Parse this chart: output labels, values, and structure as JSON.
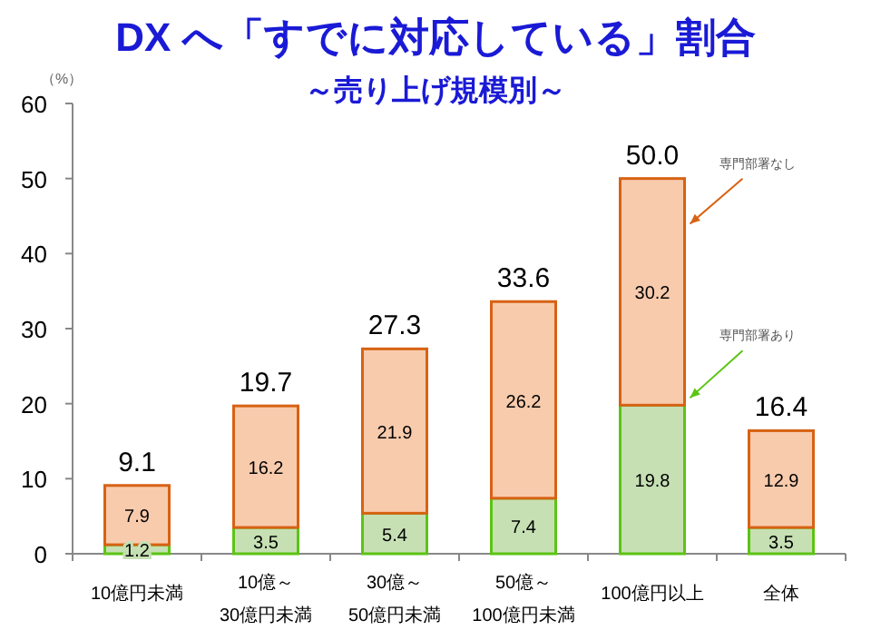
{
  "chart_data": {
    "type": "bar",
    "title": "DX へ「すでに対応している」割合",
    "subtitle": "～売り上げ規模別～",
    "ylabel": "（%）",
    "categories": [
      "10億円未満",
      "10億～\n30億円未満",
      "30億～\n50億円未満",
      "50億～\n100億円未満",
      "100億円以上",
      "全体"
    ],
    "stacked": true,
    "series": [
      {
        "name": "専門部署あり",
        "color": "#c6e0b4",
        "values": [
          1.2,
          3.5,
          5.4,
          7.4,
          19.8,
          3.5
        ]
      },
      {
        "name": "専門部署なし",
        "color": "#f8cbad",
        "values": [
          7.9,
          16.2,
          21.9,
          26.2,
          30.2,
          12.9
        ]
      }
    ],
    "totals": [
      "9.1",
      "19.7",
      "27.3",
      "33.6",
      "50.0",
      "16.4"
    ],
    "data_labels": true,
    "ylim": [
      0,
      60
    ],
    "yticks": [
      0,
      10,
      20,
      30,
      40,
      50,
      60
    ],
    "grid": false
  }
}
